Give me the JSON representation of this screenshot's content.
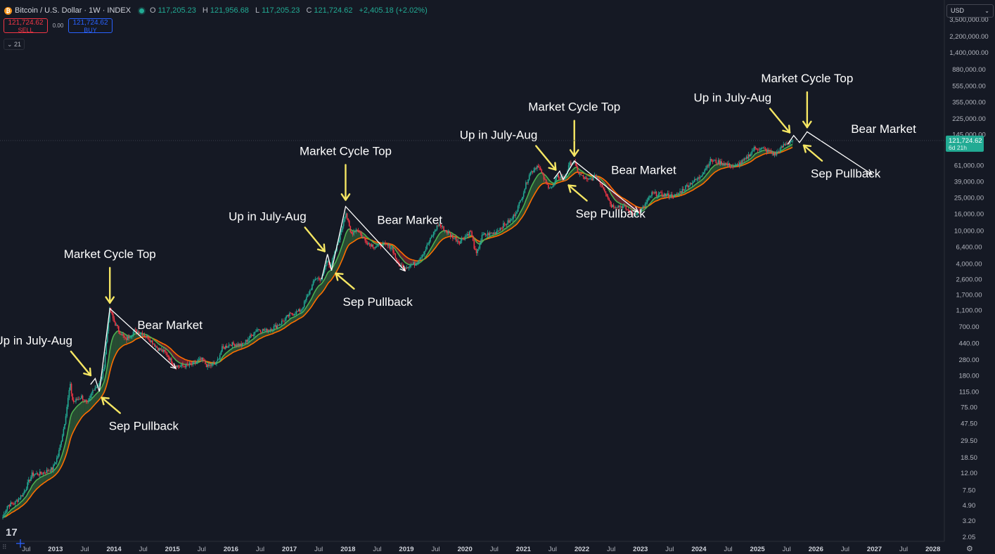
{
  "header": {
    "symbol": "Bitcoin / U.S. Dollar · 1W · INDEX",
    "open_label": "O",
    "open": "117,205.23",
    "high_label": "H",
    "high": "121,956.68",
    "low_label": "L",
    "low": "117,205.23",
    "close_label": "C",
    "close": "121,724.62",
    "change": "+2,405.18 (+2.02%)"
  },
  "trade": {
    "sell_price": "121,724.62",
    "sell_label": "SELL",
    "spread": "0.00",
    "buy_price": "121,724.62",
    "buy_label": "BUY"
  },
  "indicator": {
    "label": "21"
  },
  "currency": {
    "value": "USD"
  },
  "price_tag": {
    "value": "121,724.62",
    "countdown": "6d 21h"
  },
  "colors": {
    "background": "#151924",
    "up": "#22ab94",
    "down": "#f23645",
    "ema_fast": "#4caf50",
    "ema_slow": "#ff6d00",
    "annotation_arrow": "#f5e663",
    "annotation_line": "#ffffff"
  },
  "chart_data": {
    "type": "line",
    "y_scale": "log",
    "ylim": [
      1.8,
      6000000
    ],
    "xlim": [
      2012.1,
      2028.1
    ],
    "y_ticks": [
      {
        "v": 3500000,
        "label": "3,500,000.00"
      },
      {
        "v": 2200000,
        "label": "2,200,000.00"
      },
      {
        "v": 1400000,
        "label": "1,400,000.00"
      },
      {
        "v": 880000,
        "label": "880,000.00"
      },
      {
        "v": 555000,
        "label": "555,000.00"
      },
      {
        "v": 355000,
        "label": "355,000.00"
      },
      {
        "v": 225000,
        "label": "225,000.00"
      },
      {
        "v": 145000,
        "label": "145,000.00"
      },
      {
        "v": 61000,
        "label": "61,000.00"
      },
      {
        "v": 39000,
        "label": "39,000.00"
      },
      {
        "v": 25000,
        "label": "25,000.00"
      },
      {
        "v": 16000,
        "label": "16,000.00"
      },
      {
        "v": 10000,
        "label": "10,000.00"
      },
      {
        "v": 6400,
        "label": "6,400.00"
      },
      {
        "v": 4000,
        "label": "4,000.00"
      },
      {
        "v": 2600,
        "label": "2,600.00"
      },
      {
        "v": 1700,
        "label": "1,700.00"
      },
      {
        "v": 1100,
        "label": "1,100.00"
      },
      {
        "v": 700,
        "label": "700.00"
      },
      {
        "v": 440,
        "label": "440.00"
      },
      {
        "v": 280,
        "label": "280.00"
      },
      {
        "v": 180,
        "label": "180.00"
      },
      {
        "v": 115,
        "label": "115.00"
      },
      {
        "v": 75,
        "label": "75.00"
      },
      {
        "v": 47.5,
        "label": "47.50"
      },
      {
        "v": 29.5,
        "label": "29.50"
      },
      {
        "v": 18.5,
        "label": "18.50"
      },
      {
        "v": 12,
        "label": "12.00"
      },
      {
        "v": 7.5,
        "label": "7.50"
      },
      {
        "v": 4.9,
        "label": "4.90"
      },
      {
        "v": 3.2,
        "label": "3.20"
      },
      {
        "v": 2.05,
        "label": "2.05"
      }
    ],
    "x_ticks": [
      {
        "t": 2012.5,
        "label": "Jul"
      },
      {
        "t": 2013.0,
        "label": "2013"
      },
      {
        "t": 2013.5,
        "label": "Jul"
      },
      {
        "t": 2014.0,
        "label": "2014"
      },
      {
        "t": 2014.5,
        "label": "Jul"
      },
      {
        "t": 2015.0,
        "label": "2015"
      },
      {
        "t": 2015.5,
        "label": "Jul"
      },
      {
        "t": 2016.0,
        "label": "2016"
      },
      {
        "t": 2016.5,
        "label": "Jul"
      },
      {
        "t": 2017.0,
        "label": "2017"
      },
      {
        "t": 2017.5,
        "label": "Jul"
      },
      {
        "t": 2018.0,
        "label": "2018"
      },
      {
        "t": 2018.5,
        "label": "Jul"
      },
      {
        "t": 2019.0,
        "label": "2019"
      },
      {
        "t": 2019.5,
        "label": "Jul"
      },
      {
        "t": 2020.0,
        "label": "2020"
      },
      {
        "t": 2020.5,
        "label": "Jul"
      },
      {
        "t": 2021.0,
        "label": "2021"
      },
      {
        "t": 2021.5,
        "label": "Jul"
      },
      {
        "t": 2022.0,
        "label": "2022"
      },
      {
        "t": 2022.5,
        "label": "Jul"
      },
      {
        "t": 2023.0,
        "label": "2023"
      },
      {
        "t": 2023.5,
        "label": "Jul"
      },
      {
        "t": 2024.0,
        "label": "2024"
      },
      {
        "t": 2024.5,
        "label": "Jul"
      },
      {
        "t": 2025.0,
        "label": "2025"
      },
      {
        "t": 2025.5,
        "label": "Jul"
      },
      {
        "t": 2026.0,
        "label": "2026"
      },
      {
        "t": 2026.5,
        "label": "Jul"
      },
      {
        "t": 2027.0,
        "label": "2027"
      },
      {
        "t": 2027.5,
        "label": "Jul"
      },
      {
        "t": 2028.0,
        "label": "2028"
      }
    ],
    "price_points": [
      [
        2012.1,
        3.5
      ],
      [
        2012.18,
        4.9
      ],
      [
        2012.3,
        5.2
      ],
      [
        2012.45,
        6.8
      ],
      [
        2012.6,
        11.5
      ],
      [
        2012.75,
        11.8
      ],
      [
        2012.95,
        13.5
      ],
      [
        2013.05,
        20
      ],
      [
        2013.15,
        45
      ],
      [
        2013.25,
        140
      ],
      [
        2013.3,
        85
      ],
      [
        2013.45,
        100
      ],
      [
        2013.55,
        80
      ],
      [
        2013.65,
        125
      ],
      [
        2013.75,
        140
      ],
      [
        2013.82,
        200
      ],
      [
        2013.9,
        750
      ],
      [
        2013.93,
        1150
      ],
      [
        2014.0,
        800
      ],
      [
        2014.1,
        600
      ],
      [
        2014.2,
        480
      ],
      [
        2014.35,
        620
      ],
      [
        2014.45,
        600
      ],
      [
        2014.6,
        500
      ],
      [
        2014.75,
        380
      ],
      [
        2014.9,
        330
      ],
      [
        2015.0,
        250
      ],
      [
        2015.1,
        230
      ],
      [
        2015.3,
        240
      ],
      [
        2015.5,
        280
      ],
      [
        2015.6,
        230
      ],
      [
        2015.75,
        250
      ],
      [
        2015.85,
        380
      ],
      [
        2016.0,
        430
      ],
      [
        2016.2,
        420
      ],
      [
        2016.45,
        650
      ],
      [
        2016.6,
        620
      ],
      [
        2016.8,
        720
      ],
      [
        2017.0,
        960
      ],
      [
        2017.2,
        1100
      ],
      [
        2017.45,
        2700
      ],
      [
        2017.55,
        2600
      ],
      [
        2017.65,
        4500
      ],
      [
        2017.7,
        3700
      ],
      [
        2017.8,
        6000
      ],
      [
        2017.9,
        11000
      ],
      [
        2017.96,
        17000
      ],
      [
        2018.05,
        9000
      ],
      [
        2018.15,
        10500
      ],
      [
        2018.3,
        7500
      ],
      [
        2018.45,
        6400
      ],
      [
        2018.6,
        6800
      ],
      [
        2018.75,
        6300
      ],
      [
        2018.85,
        4000
      ],
      [
        2018.96,
        3600
      ],
      [
        2019.15,
        4000
      ],
      [
        2019.3,
        5500
      ],
      [
        2019.5,
        10500
      ],
      [
        2019.55,
        12000
      ],
      [
        2019.7,
        9500
      ],
      [
        2019.9,
        7300
      ],
      [
        2020.1,
        9800
      ],
      [
        2020.19,
        5000
      ],
      [
        2020.3,
        8800
      ],
      [
        2020.5,
        9300
      ],
      [
        2020.65,
        11500
      ],
      [
        2020.8,
        13500
      ],
      [
        2020.9,
        18500
      ],
      [
        2021.0,
        29000
      ],
      [
        2021.1,
        48000
      ],
      [
        2021.25,
        62000
      ],
      [
        2021.4,
        35000
      ],
      [
        2021.5,
        33000
      ],
      [
        2021.58,
        45000
      ],
      [
        2021.7,
        43000
      ],
      [
        2021.8,
        65000
      ],
      [
        2021.87,
        66000
      ],
      [
        2021.95,
        48000
      ],
      [
        2022.1,
        40000
      ],
      [
        2022.25,
        45000
      ],
      [
        2022.4,
        30000
      ],
      [
        2022.5,
        20000
      ],
      [
        2022.7,
        19500
      ],
      [
        2022.86,
        16000
      ],
      [
        2023.0,
        16800
      ],
      [
        2023.2,
        28000
      ],
      [
        2023.4,
        27000
      ],
      [
        2023.6,
        26000
      ],
      [
        2023.8,
        35000
      ],
      [
        2024.0,
        43000
      ],
      [
        2024.2,
        70000
      ],
      [
        2024.4,
        65000
      ],
      [
        2024.6,
        58000
      ],
      [
        2024.8,
        72000
      ],
      [
        2024.95,
        98000
      ],
      [
        2025.1,
        96000
      ],
      [
        2025.3,
        82000
      ],
      [
        2025.45,
        106000
      ],
      [
        2025.55,
        117000
      ],
      [
        2025.6,
        121724.62
      ]
    ],
    "last_price": 121724.62,
    "annotations": [
      {
        "text": "Market Cycle Top",
        "t": 2013.93,
        "p": 1150,
        "kind": "top"
      },
      {
        "text": "Up in July-Aug",
        "t": 2013.65,
        "p": 160,
        "kind": "up"
      },
      {
        "text": "Sep Pullback",
        "t": 2013.72,
        "p": 105,
        "kind": "pullback"
      },
      {
        "text": "Bear Market",
        "t": 2014.4,
        "p": 650,
        "kind": "bear"
      },
      {
        "text": "Market Cycle Top",
        "t": 2017.96,
        "p": 20000,
        "kind": "top"
      },
      {
        "text": "Up in July-Aug",
        "t": 2017.65,
        "p": 5000,
        "kind": "up"
      },
      {
        "text": "Sep Pullback",
        "t": 2017.72,
        "p": 3300,
        "kind": "pullback"
      },
      {
        "text": "Bear Market",
        "t": 2018.5,
        "p": 12000,
        "kind": "bear"
      },
      {
        "text": "Market Cycle Top",
        "t": 2021.87,
        "p": 68000,
        "kind": "top"
      },
      {
        "text": "Up in July-Aug",
        "t": 2021.6,
        "p": 48000,
        "kind": "up"
      },
      {
        "text": "Sep Pullback",
        "t": 2021.7,
        "p": 38000,
        "kind": "pullback"
      },
      {
        "text": "Bear Market",
        "t": 2022.5,
        "p": 48000,
        "kind": "bear"
      },
      {
        "text": "Market Cycle Top",
        "t": 2025.85,
        "p": 150000,
        "kind": "top"
      },
      {
        "text": "Up in July-Aug",
        "t": 2025.6,
        "p": 135000,
        "kind": "up"
      },
      {
        "text": "Sep Pullback",
        "t": 2025.72,
        "p": 115000,
        "kind": "pullback"
      },
      {
        "text": "Bear Market",
        "t": 2026.6,
        "p": 150000,
        "kind": "bear"
      }
    ],
    "projections": [
      {
        "name": "cycle-2013",
        "points": [
          [
            2013.6,
            140
          ],
          [
            2013.68,
            165
          ],
          [
            2013.75,
            115
          ],
          [
            2013.93,
            1150
          ],
          [
            2015.05,
            220
          ]
        ]
      },
      {
        "name": "cycle-2017",
        "points": [
          [
            2017.55,
            2600
          ],
          [
            2017.65,
            5200
          ],
          [
            2017.72,
            3300
          ],
          [
            2017.96,
            19500
          ],
          [
            2018.97,
            3300
          ]
        ]
      },
      {
        "name": "cycle-2021",
        "points": [
          [
            2021.52,
            42000
          ],
          [
            2021.62,
            52000
          ],
          [
            2021.68,
            41000
          ],
          [
            2021.87,
            69000
          ],
          [
            2022.95,
            17000
          ]
        ]
      },
      {
        "name": "cycle-2025",
        "points": [
          [
            2025.52,
            110000
          ],
          [
            2025.62,
            140000
          ],
          [
            2025.72,
            115000
          ],
          [
            2025.85,
            155000
          ],
          [
            2026.95,
            48000
          ]
        ]
      }
    ]
  }
}
